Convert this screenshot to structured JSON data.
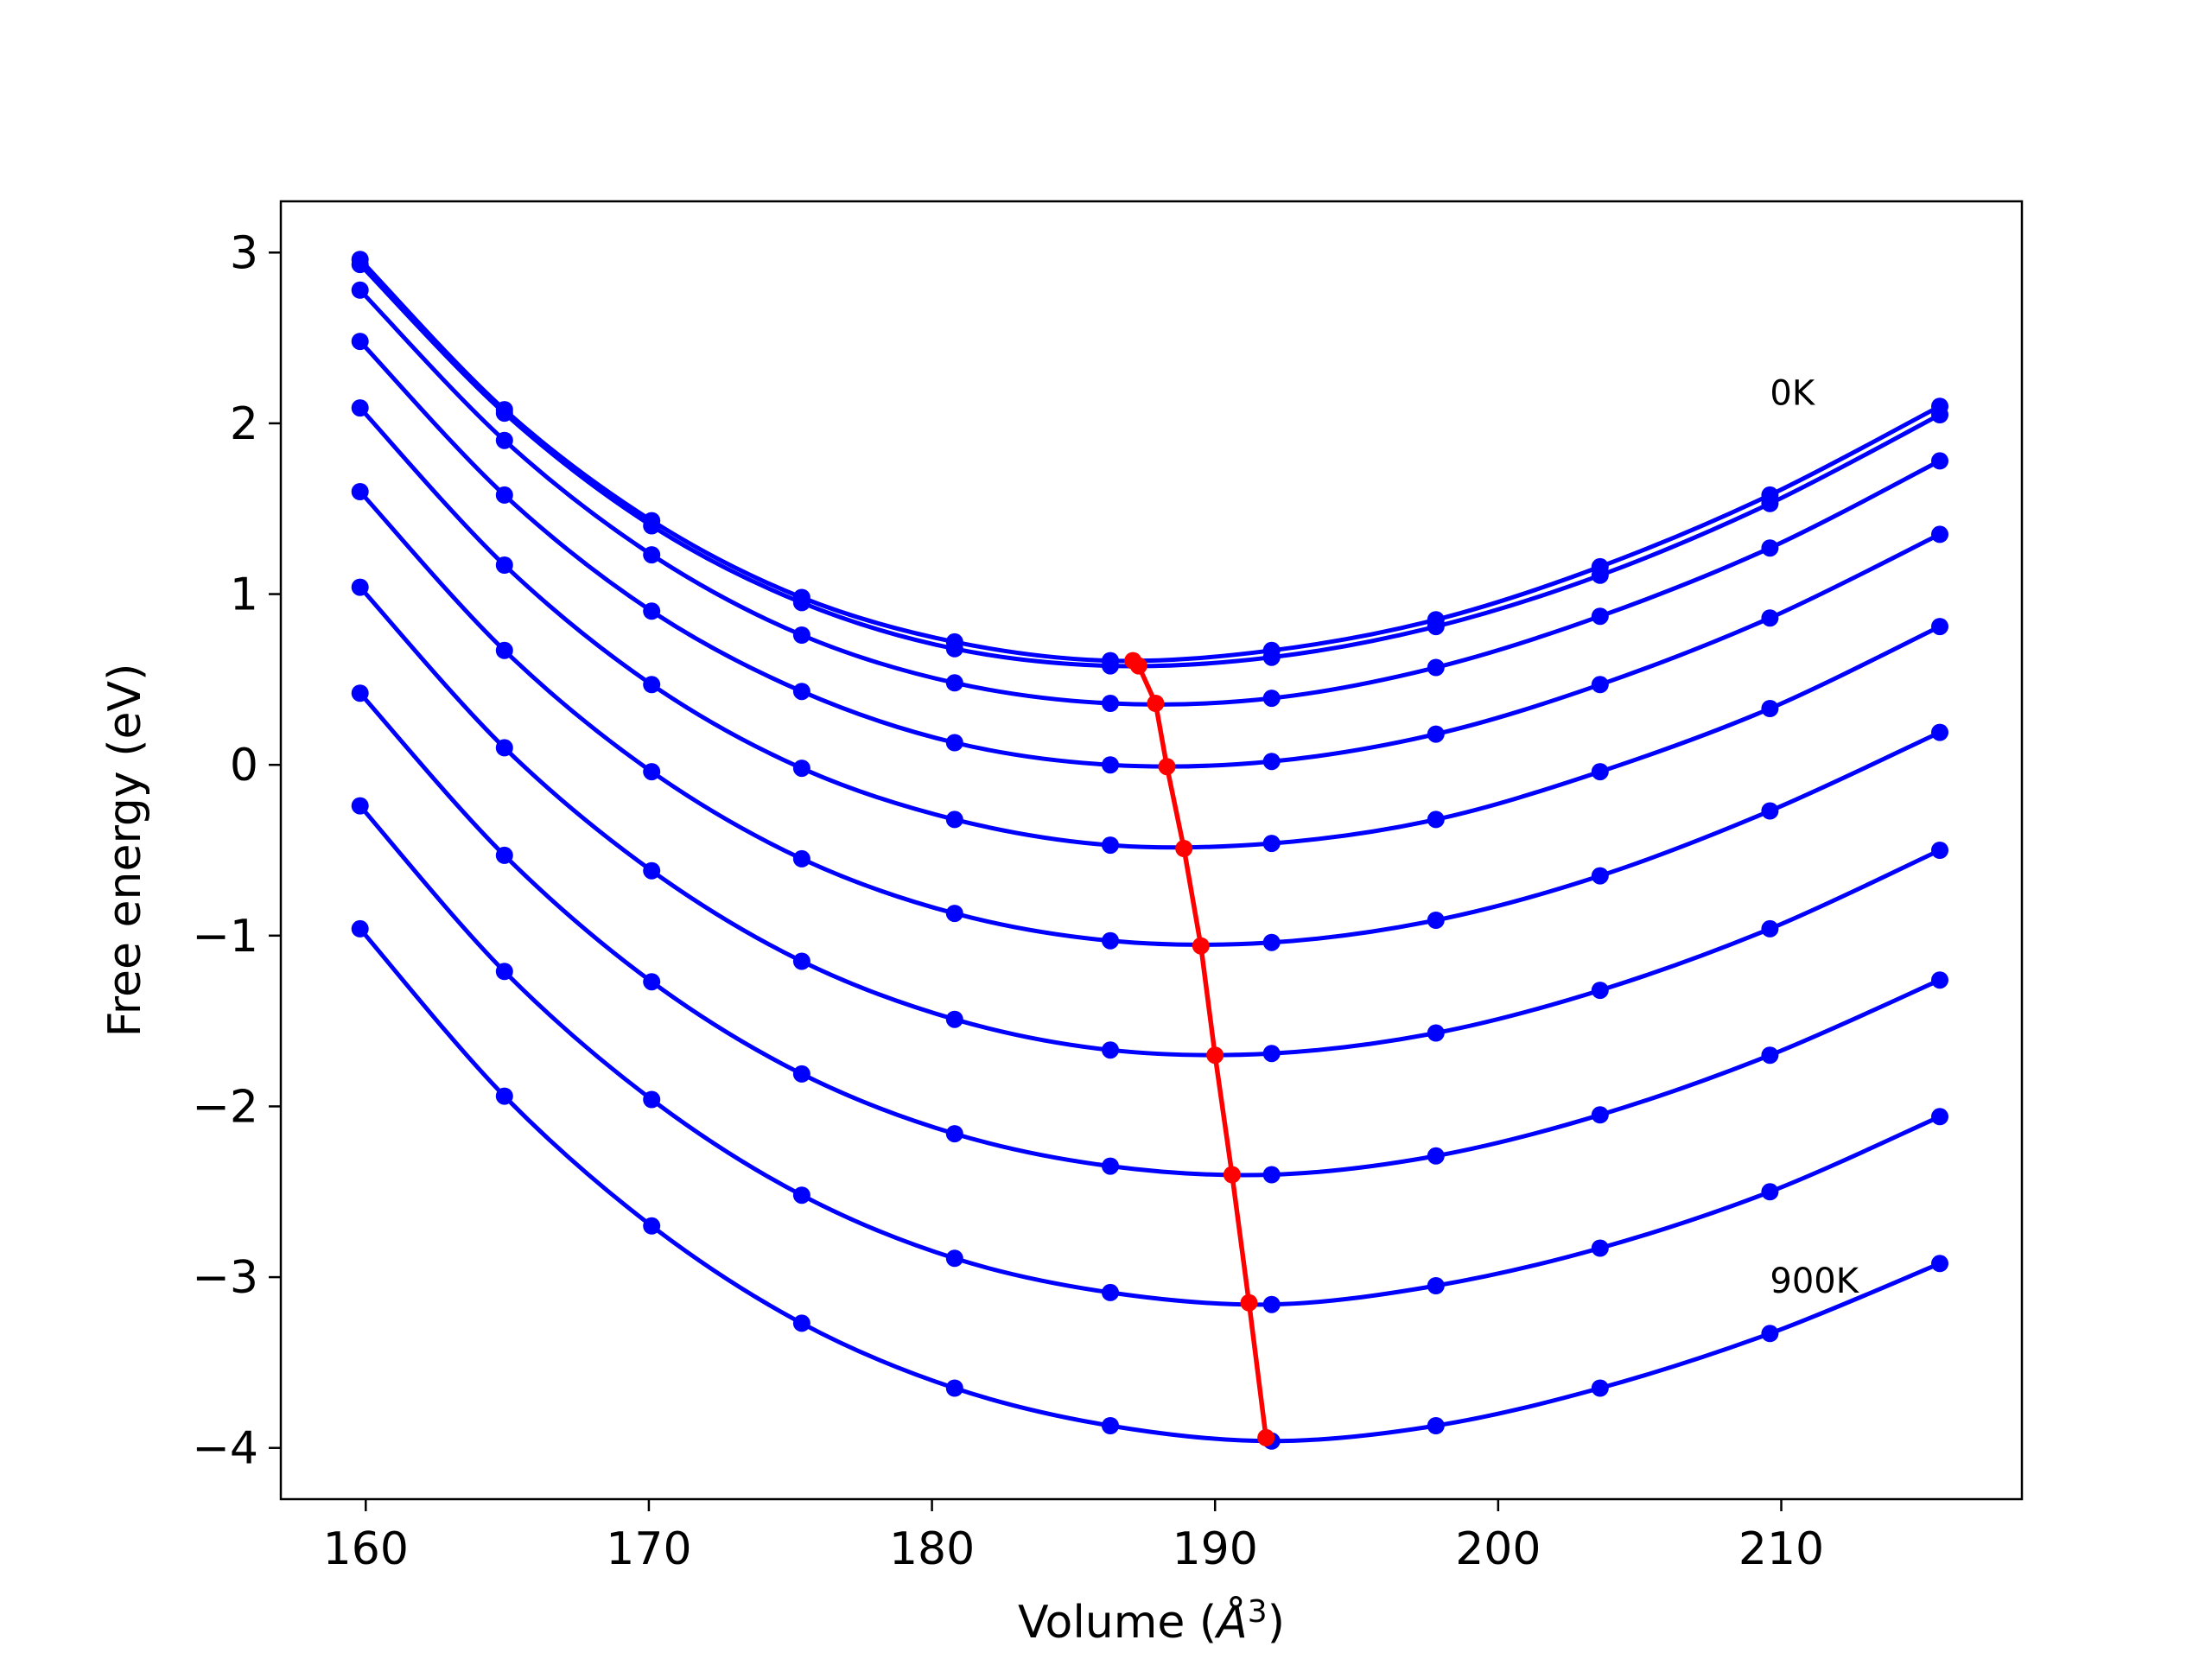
{
  "chart_data": {
    "type": "line",
    "xlabel": "Volume (",
    "xlabel_unit": "Å",
    "xlabel_exp": "3",
    "xlabel_close": ")",
    "ylabel": "Free energy (eV)",
    "xlim": [
      157,
      218.5
    ],
    "ylim": [
      -4.3,
      3.3
    ],
    "xticks": [
      160,
      170,
      180,
      190,
      200,
      210
    ],
    "xtick_labels": [
      "160",
      "170",
      "180",
      "190",
      "200",
      "210"
    ],
    "yticks": [
      3,
      2,
      1,
      0,
      -1,
      -2,
      -3,
      -4
    ],
    "ytick_labels": [
      "3",
      "2",
      "1",
      "0",
      "−1",
      "−2",
      "−3",
      "−4"
    ],
    "grid": false,
    "legend": "none",
    "colors": {
      "curves": "#0000ff",
      "minima": "#ff0000",
      "axes": "#000000"
    },
    "annotations": [
      {
        "text": "0K",
        "x": 209.6,
        "y": 2.18
      },
      {
        "text": "900K",
        "x": 209.6,
        "y": -3.02
      }
    ],
    "x": [
      159.8,
      164.9,
      170.1,
      175.4,
      180.8,
      186.3,
      192.0,
      197.8,
      203.6,
      209.6,
      215.6
    ],
    "series": [
      {
        "values": [
          2.96,
          2.08,
          1.43,
          0.98,
          0.72,
          0.61,
          0.67,
          0.85,
          1.16,
          1.58,
          2.1
        ]
      },
      {
        "values": [
          2.93,
          2.06,
          1.4,
          0.95,
          0.68,
          0.58,
          0.63,
          0.81,
          1.11,
          1.53,
          2.05
        ]
      },
      {
        "values": [
          2.78,
          1.9,
          1.23,
          0.76,
          0.48,
          0.36,
          0.39,
          0.57,
          0.87,
          1.27,
          1.78
        ]
      },
      {
        "values": [
          2.48,
          1.58,
          0.9,
          0.43,
          0.13,
          0.0,
          0.02,
          0.18,
          0.47,
          0.86,
          1.35
        ]
      },
      {
        "values": [
          2.09,
          1.17,
          0.47,
          -0.02,
          -0.32,
          -0.47,
          -0.46,
          -0.32,
          -0.04,
          0.33,
          0.81
        ]
      },
      {
        "values": [
          1.6,
          0.67,
          -0.04,
          -0.55,
          -0.87,
          -1.03,
          -1.04,
          -0.91,
          -0.65,
          -0.27,
          0.19
        ]
      },
      {
        "values": [
          1.04,
          0.1,
          -0.62,
          -1.15,
          -1.49,
          -1.67,
          -1.69,
          -1.57,
          -1.32,
          -0.96,
          -0.5
        ]
      },
      {
        "values": [
          0.42,
          -0.53,
          -1.27,
          -1.81,
          -2.16,
          -2.35,
          -2.4,
          -2.29,
          -2.05,
          -1.7,
          -1.26
        ]
      },
      {
        "values": [
          -0.24,
          -1.21,
          -1.96,
          -2.52,
          -2.89,
          -3.09,
          -3.16,
          -3.05,
          -2.83,
          -2.5,
          -2.06
        ]
      },
      {
        "values": [
          -0.96,
          -1.94,
          -2.7,
          -3.27,
          -3.65,
          -3.87,
          -3.96,
          -3.87,
          -3.65,
          -3.33,
          -2.92
        ]
      }
    ],
    "minima": {
      "x": [
        187.1,
        187.3,
        187.9,
        188.3,
        188.9,
        189.5,
        190.0,
        190.6,
        191.2,
        191.8
      ],
      "y": [
        0.61,
        0.58,
        0.36,
        -0.01,
        -0.49,
        -1.06,
        -1.7,
        -2.4,
        -3.15,
        -3.94
      ]
    }
  }
}
